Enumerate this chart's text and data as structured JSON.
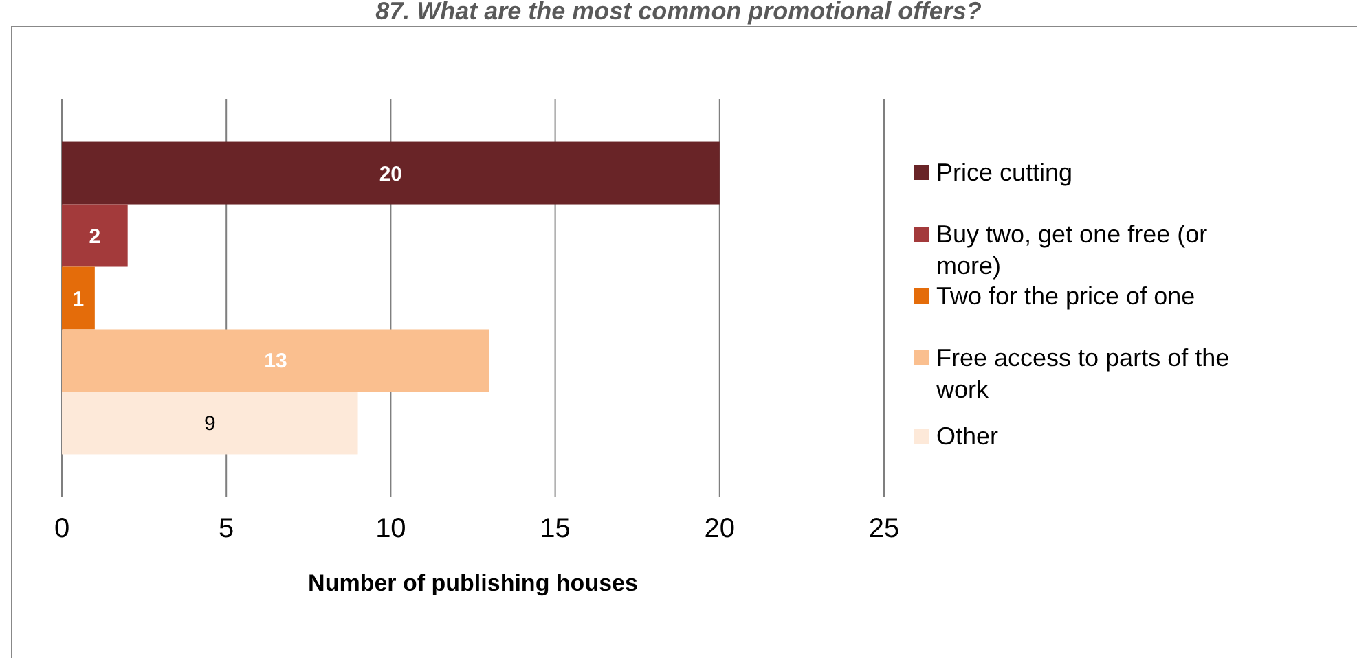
{
  "chart_data": {
    "type": "bar",
    "orientation": "horizontal",
    "title": "87. What are the most common promotional offers?",
    "xlabel": "Number of publishing houses",
    "categories": [
      null
    ],
    "series": [
      {
        "name": "Price cutting",
        "color": "#692427",
        "values": [
          20
        ]
      },
      {
        "name": "Buy two, get one free (or more)",
        "color": "#a33a3b",
        "values": [
          2
        ]
      },
      {
        "name": "Two for the price of one",
        "color": "#e46c0a",
        "values": [
          1
        ]
      },
      {
        "name": "Free access to parts of the work",
        "color": "#fabf8f",
        "values": [
          13
        ]
      },
      {
        "name": "Other",
        "color": "#fde9d9",
        "values": [
          9
        ]
      }
    ],
    "xlim": [
      0,
      25
    ],
    "xticks": [
      0,
      5,
      10,
      15,
      20,
      25
    ],
    "grid": "x",
    "legend": "right",
    "data_labels": true
  }
}
